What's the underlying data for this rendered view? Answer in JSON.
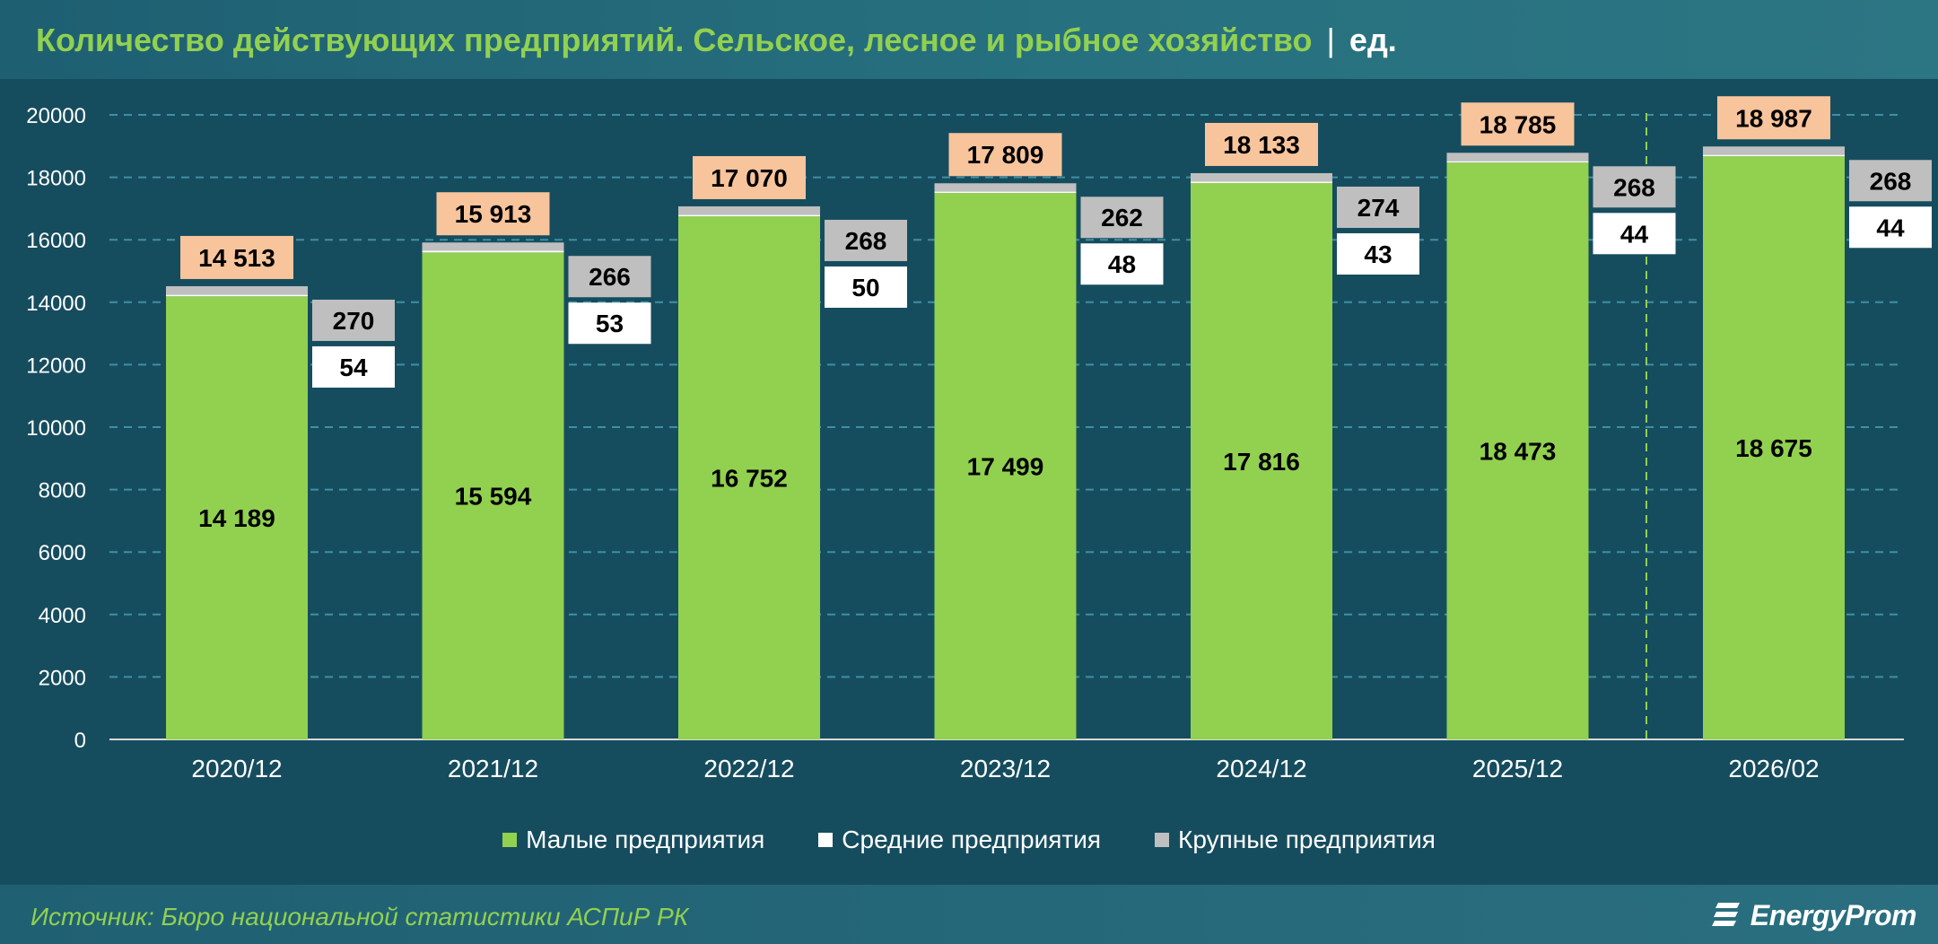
{
  "header": {
    "title": "Количество действующих предприятий. Сельское, лесное и рыбное хозяйство",
    "separator": "|",
    "unit": "ед."
  },
  "footer": {
    "source": "Источник: Бюро национальной статистики АСПиР РК",
    "logo_text": "EnergyProm"
  },
  "colors": {
    "small": "#92d050",
    "medium": "#ffffff",
    "large": "#bfbfbf",
    "total_label_bg": "#f8c49c",
    "grid": "#3f8fa5",
    "axis_text": "#ffffff",
    "background": "#164d5e"
  },
  "chart_data": {
    "type": "bar",
    "stacked": true,
    "categories": [
      "2020/12",
      "2021/12",
      "2022/12",
      "2023/12",
      "2024/12",
      "2025/12",
      "2026/02"
    ],
    "series": [
      {
        "name": "Малые предприятия",
        "values": [
          14189,
          15594,
          16752,
          17499,
          17816,
          18473,
          18675
        ],
        "labels": [
          "14 189",
          "15 594",
          "16 752",
          "17 499",
          "17 816",
          "18 473",
          "18 675"
        ]
      },
      {
        "name": "Средние предприятия",
        "values": [
          54,
          53,
          50,
          48,
          43,
          44,
          44
        ],
        "labels": [
          "54",
          "53",
          "50",
          "48",
          "43",
          "44",
          "44"
        ]
      },
      {
        "name": "Крупные предприятия",
        "values": [
          270,
          266,
          268,
          262,
          274,
          268,
          268
        ],
        "labels": [
          "270",
          "266",
          "268",
          "262",
          "274",
          "268",
          "268"
        ]
      }
    ],
    "totals": [
      14513,
      15913,
      17070,
      17809,
      18133,
      18785,
      18987
    ],
    "total_labels": [
      "14 513",
      "15 913",
      "17 070",
      "17 809",
      "18 133",
      "18 785",
      "18 987"
    ],
    "ylim": [
      0,
      20000
    ],
    "yticks": [
      0,
      2000,
      4000,
      6000,
      8000,
      10000,
      12000,
      14000,
      16000,
      18000,
      20000
    ],
    "grid": true,
    "legend_position": "bottom",
    "divider_before_last": true,
    "title": "Количество действующих предприятий. Сельское, лесное и рыбное хозяйство",
    "xlabel": "",
    "ylabel": ""
  }
}
